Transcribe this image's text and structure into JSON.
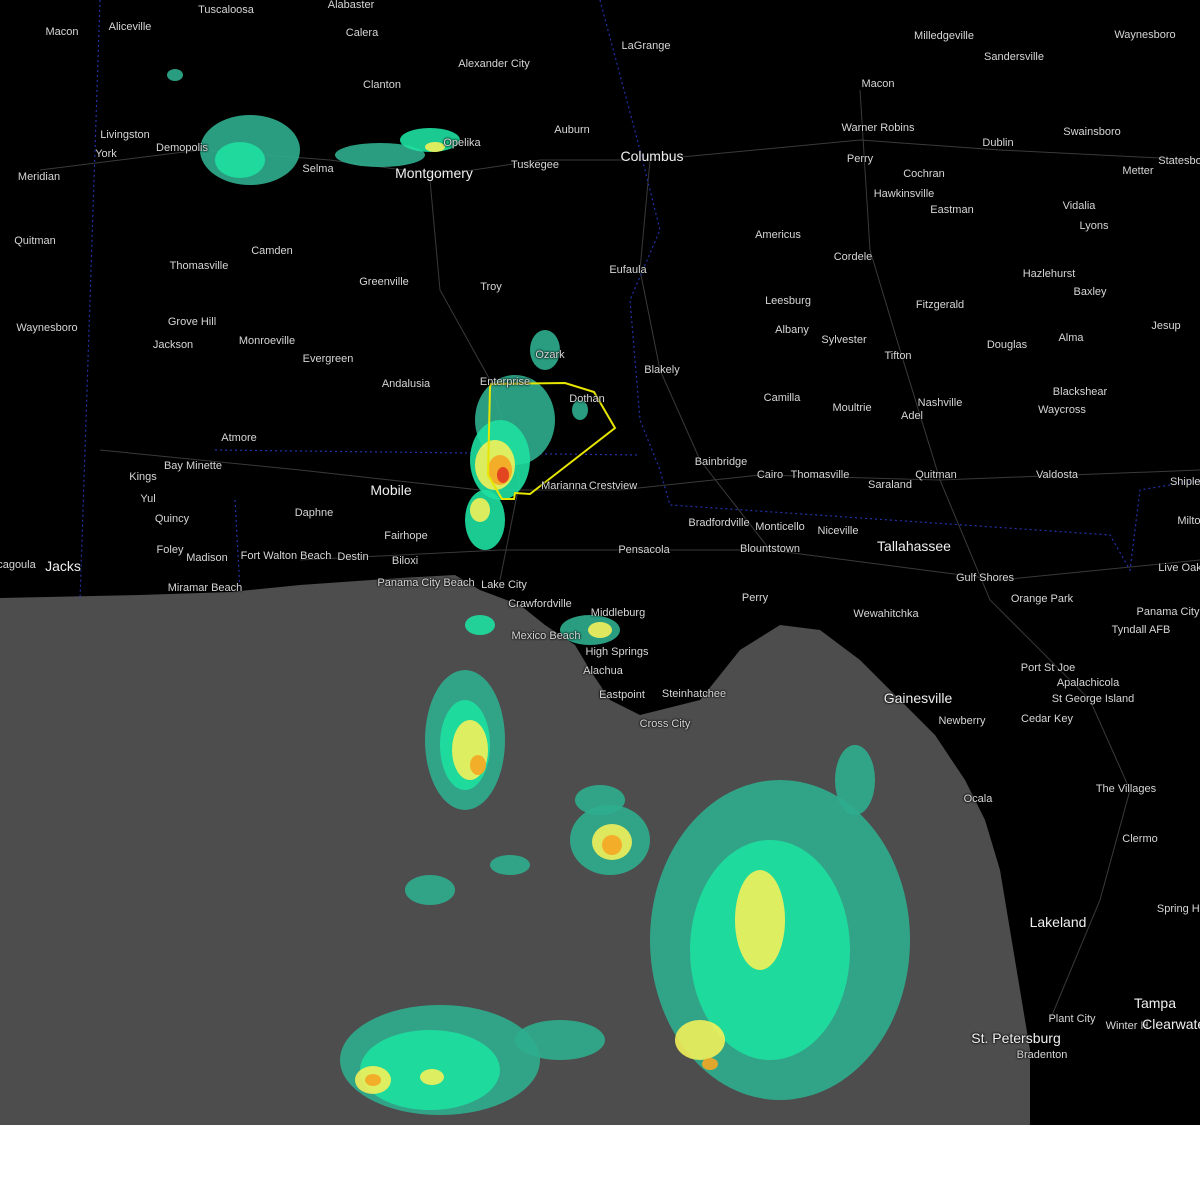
{
  "map": {
    "colors": {
      "land": "#000000",
      "water": "#4d4d4d",
      "roads": "#3a3a3a",
      "state_borders": "#2233aa",
      "warning_polygon": "#e6e600",
      "radar_light": "#2fae8f",
      "radar_mid": "#1ee0a0",
      "radar_yellow": "#f2f05a",
      "radar_orange": "#f5a623",
      "radar_red": "#e03a1f"
    },
    "warning_polygon": {
      "type": "severe-thunderstorm-warning",
      "outline_color": "#e6e600"
    },
    "cities": [
      {
        "name": "Tuscaloosa",
        "big": false
      },
      {
        "name": "Alabaster",
        "big": false
      },
      {
        "name": "Macon",
        "big": false
      },
      {
        "name": "Aliceville",
        "big": false
      },
      {
        "name": "Calera",
        "big": false
      },
      {
        "name": "LaGrange",
        "big": false
      },
      {
        "name": "Milledgeville",
        "big": false
      },
      {
        "name": "Waynesboro",
        "big": false
      },
      {
        "name": "Sandersville",
        "big": false
      },
      {
        "name": "Alexander City",
        "big": false
      },
      {
        "name": "Clanton",
        "big": false
      },
      {
        "name": "Macon",
        "big": false
      },
      {
        "name": "Livingston",
        "big": false
      },
      {
        "name": "Demopolis",
        "big": false
      },
      {
        "name": "York",
        "big": false
      },
      {
        "name": "Auburn",
        "big": false
      },
      {
        "name": "Opelika",
        "big": false
      },
      {
        "name": "Warner Robins",
        "big": false
      },
      {
        "name": "Swainsboro",
        "big": false
      },
      {
        "name": "Columbus",
        "big": true
      },
      {
        "name": "Dublin",
        "big": false
      },
      {
        "name": "Statesbo",
        "big": false
      },
      {
        "name": "Meridian",
        "big": false
      },
      {
        "name": "Selma",
        "big": false
      },
      {
        "name": "Montgomery",
        "big": true
      },
      {
        "name": "Tuskegee",
        "big": false
      },
      {
        "name": "Perry",
        "big": false
      },
      {
        "name": "Cochran",
        "big": false
      },
      {
        "name": "Metter",
        "big": false
      },
      {
        "name": "Hawkinsville",
        "big": false
      },
      {
        "name": "Eastman",
        "big": false
      },
      {
        "name": "Vidalia",
        "big": false
      },
      {
        "name": "Lyons",
        "big": false
      },
      {
        "name": "Quitman",
        "big": false
      },
      {
        "name": "Camden",
        "big": false
      },
      {
        "name": "Americus",
        "big": false
      },
      {
        "name": "Thomasville",
        "big": false
      },
      {
        "name": "Cordele",
        "big": false
      },
      {
        "name": "Eufaula",
        "big": false
      },
      {
        "name": "Greenville",
        "big": false
      },
      {
        "name": "Hazlehurst",
        "big": false
      },
      {
        "name": "Troy",
        "big": false
      },
      {
        "name": "Baxley",
        "big": false
      },
      {
        "name": "Leesburg",
        "big": false
      },
      {
        "name": "Fitzgerald",
        "big": false
      },
      {
        "name": "Grove Hill",
        "big": false
      },
      {
        "name": "Waynesboro",
        "big": false
      },
      {
        "name": "Albany",
        "big": false
      },
      {
        "name": "Jesup",
        "big": false
      },
      {
        "name": "Monroeville",
        "big": false
      },
      {
        "name": "Jackson",
        "big": false
      },
      {
        "name": "Sylvester",
        "big": false
      },
      {
        "name": "Douglas",
        "big": false
      },
      {
        "name": "Alma",
        "big": false
      },
      {
        "name": "Ozark",
        "big": false
      },
      {
        "name": "Evergreen",
        "big": false
      },
      {
        "name": "Tifton",
        "big": false
      },
      {
        "name": "Blakely",
        "big": false
      },
      {
        "name": "Andalusia",
        "big": false
      },
      {
        "name": "Enterprise",
        "big": false
      },
      {
        "name": "Blackshear",
        "big": false
      },
      {
        "name": "Camilla",
        "big": false
      },
      {
        "name": "Dothan",
        "big": false
      },
      {
        "name": "Nashville",
        "big": false
      },
      {
        "name": "Waycross",
        "big": false
      },
      {
        "name": "Moultrie",
        "big": false
      },
      {
        "name": "Adel",
        "big": false
      },
      {
        "name": "Atmore",
        "big": false
      },
      {
        "name": "Bay Minette",
        "big": false
      },
      {
        "name": "Bainbridge",
        "big": false
      },
      {
        "name": "Cairo",
        "big": false
      },
      {
        "name": "Thomasville",
        "big": false
      },
      {
        "name": "Valdosta",
        "big": false
      },
      {
        "name": "Saraland",
        "big": false
      },
      {
        "name": "Quitman",
        "big": false
      },
      {
        "name": "Kings",
        "big": false
      },
      {
        "name": "Shipley",
        "big": false
      },
      {
        "name": "Marianna",
        "big": false
      },
      {
        "name": "Crestview",
        "big": false
      },
      {
        "name": "Mobile",
        "big": true
      },
      {
        "name": "Yul",
        "big": false
      },
      {
        "name": "Milton",
        "big": false
      },
      {
        "name": "Daphne",
        "big": false
      },
      {
        "name": "Quincy",
        "big": false
      },
      {
        "name": "Bradfordville",
        "big": false
      },
      {
        "name": "Monticello",
        "big": false
      },
      {
        "name": "Niceville",
        "big": false
      },
      {
        "name": "Fairhope",
        "big": false
      },
      {
        "name": "Foley",
        "big": false
      },
      {
        "name": "Madison",
        "big": false
      },
      {
        "name": "Tallahassee",
        "big": true
      },
      {
        "name": "Blountstown",
        "big": false
      },
      {
        "name": "Pensacola",
        "big": false
      },
      {
        "name": "Fort Walton Beach",
        "big": false
      },
      {
        "name": "Destin",
        "big": false
      },
      {
        "name": "Biloxi",
        "big": false
      },
      {
        "name": "Pascagoula",
        "big": false
      },
      {
        "name": "Jacks",
        "big": true
      },
      {
        "name": "Live Oak",
        "big": false
      },
      {
        "name": "Gulf Shores",
        "big": false
      },
      {
        "name": "Miramar Beach",
        "big": false
      },
      {
        "name": "Panama City Beach",
        "big": false
      },
      {
        "name": "Lake City",
        "big": false
      },
      {
        "name": "Orange Park",
        "big": false
      },
      {
        "name": "Panama City",
        "big": false
      },
      {
        "name": "Crawfordville",
        "big": false
      },
      {
        "name": "Perry",
        "big": false
      },
      {
        "name": "Wewahitchka",
        "big": false
      },
      {
        "name": "Middleburg",
        "big": false
      },
      {
        "name": "Tyndall AFB",
        "big": false
      },
      {
        "name": "Mexico Beach",
        "big": false
      },
      {
        "name": "High Springs",
        "big": false
      },
      {
        "name": "Port St Joe",
        "big": false
      },
      {
        "name": "Alachua",
        "big": false
      },
      {
        "name": "Apalachicola",
        "big": false
      },
      {
        "name": "Eastpoint",
        "big": false
      },
      {
        "name": "Steinhatchee",
        "big": false
      },
      {
        "name": "Gainesville",
        "big": true
      },
      {
        "name": "St George Island",
        "big": false
      },
      {
        "name": "Cross City",
        "big": false
      },
      {
        "name": "Newberry",
        "big": false
      },
      {
        "name": "Cedar Key",
        "big": false
      },
      {
        "name": "Ocala",
        "big": false
      },
      {
        "name": "The Villages",
        "big": false
      },
      {
        "name": "Clermo",
        "big": false
      },
      {
        "name": "Spring Hill",
        "big": false
      },
      {
        "name": "Lakeland",
        "big": true
      },
      {
        "name": "Tampa",
        "big": true
      },
      {
        "name": "Plant City",
        "big": false
      },
      {
        "name": "Winter H",
        "big": false
      },
      {
        "name": "Clearwater",
        "big": true
      },
      {
        "name": "St. Petersburg",
        "big": true
      },
      {
        "name": "Bradenton",
        "big": false
      }
    ]
  }
}
